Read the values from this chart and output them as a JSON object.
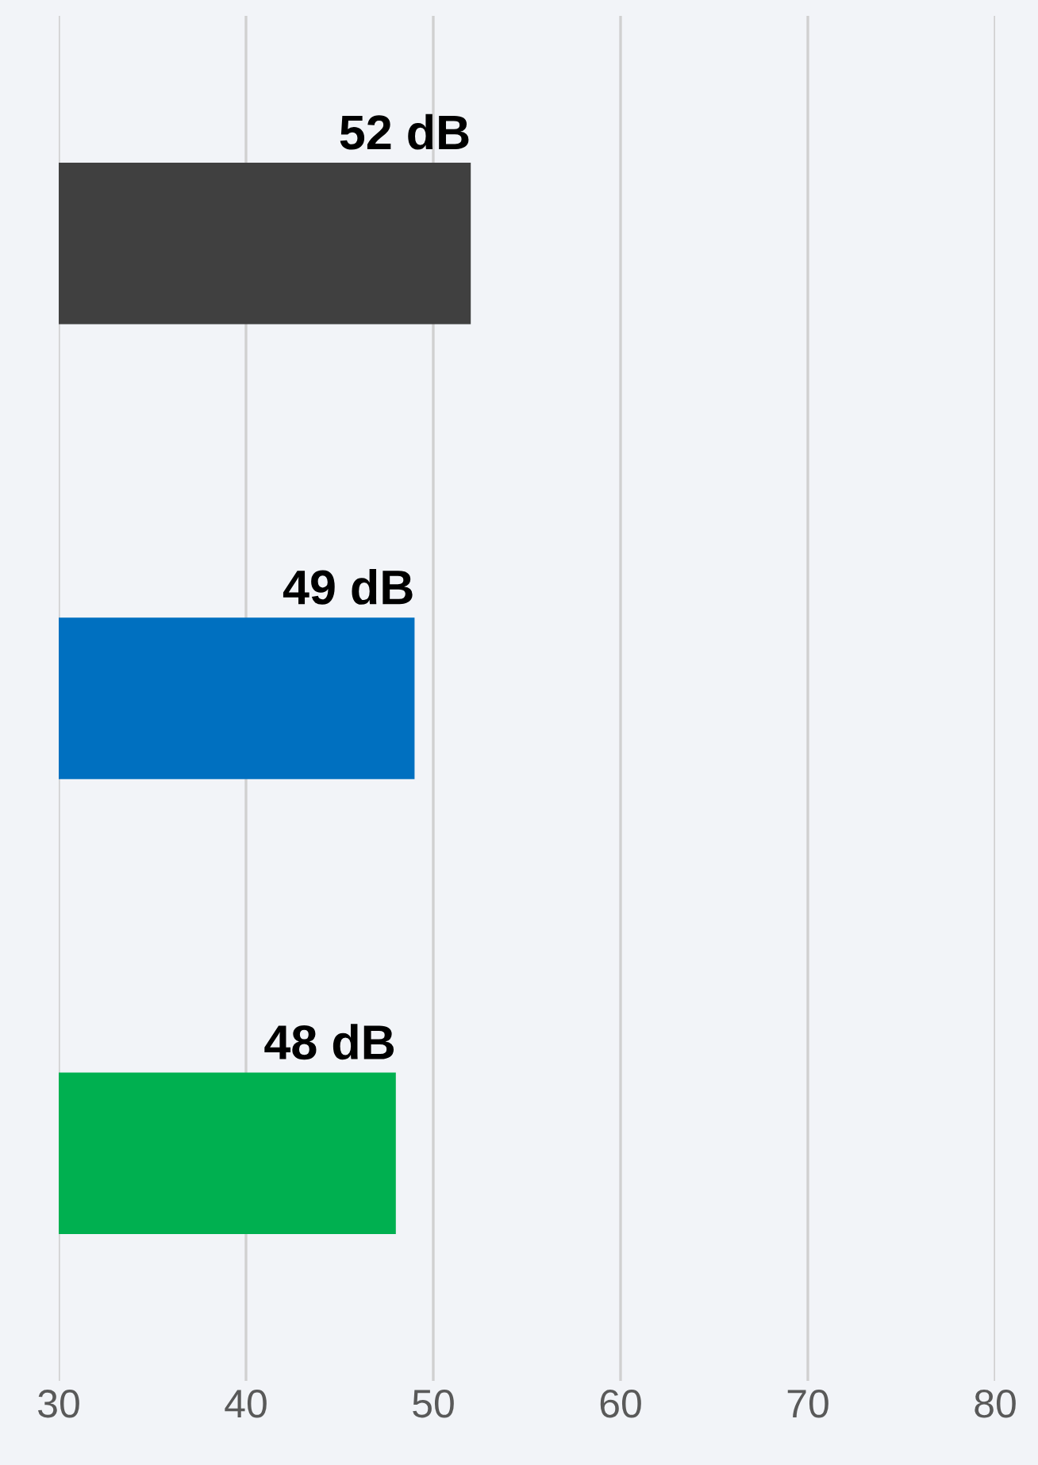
{
  "chart_data": {
    "type": "bar",
    "orientation": "horizontal",
    "categories": [
      null,
      null,
      null
    ],
    "values": [
      52,
      49,
      48
    ],
    "colors": [
      "#404040",
      "#0070c0",
      "#00b050"
    ],
    "value_labels": [
      "52 dB",
      "49 dB",
      "48 dB"
    ],
    "xlim": [
      30,
      80
    ],
    "xticks": [
      30,
      40,
      50,
      60,
      70,
      80
    ],
    "grid": "x",
    "legend": false
  }
}
